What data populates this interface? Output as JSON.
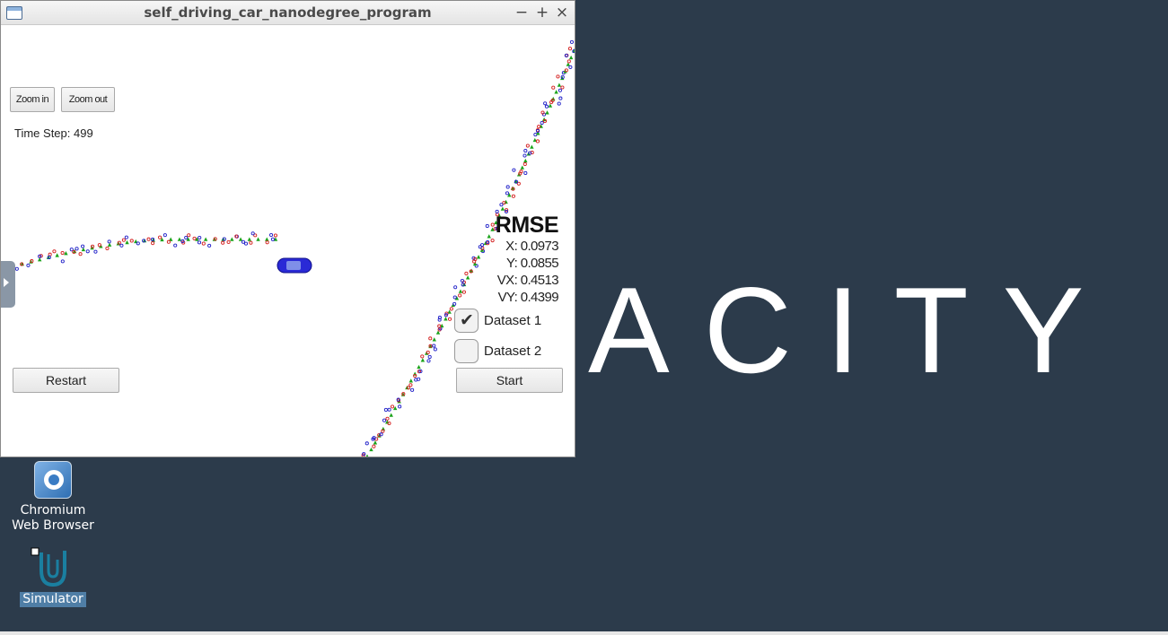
{
  "desktop": {
    "wallpaper_text": "ACITY",
    "background_color": "#2c3b4b",
    "icons": [
      {
        "label_line1": "Chromium",
        "label_line2": "Web Browser",
        "icon": "chromium-icon"
      },
      {
        "label": "Simulator",
        "icon": "udacity-icon"
      }
    ]
  },
  "window": {
    "title": "self_driving_car_nanodegree_program",
    "controls": {
      "minimize": "−",
      "maximize": "+",
      "close": "×"
    },
    "zoom_in_label": "Zoom in",
    "zoom_out_label": "Zoom out",
    "time_step": "Time Step: 499",
    "rmse": {
      "heading": "RMSE",
      "x": "X: 0.0973",
      "y": "Y: 0.0855",
      "vx": "VX: 0.4513",
      "vy": "VY: 0.4399"
    },
    "datasets": [
      {
        "label": "Dataset 1",
        "checked": true
      },
      {
        "label": "Dataset 2",
        "checked": false
      }
    ],
    "restart_label": "Restart",
    "start_label": "Start",
    "colors": {
      "estimate": "#1aa31a",
      "lidar": "#d42020",
      "radar": "#2020c8",
      "car": "#2a2ad6"
    }
  }
}
